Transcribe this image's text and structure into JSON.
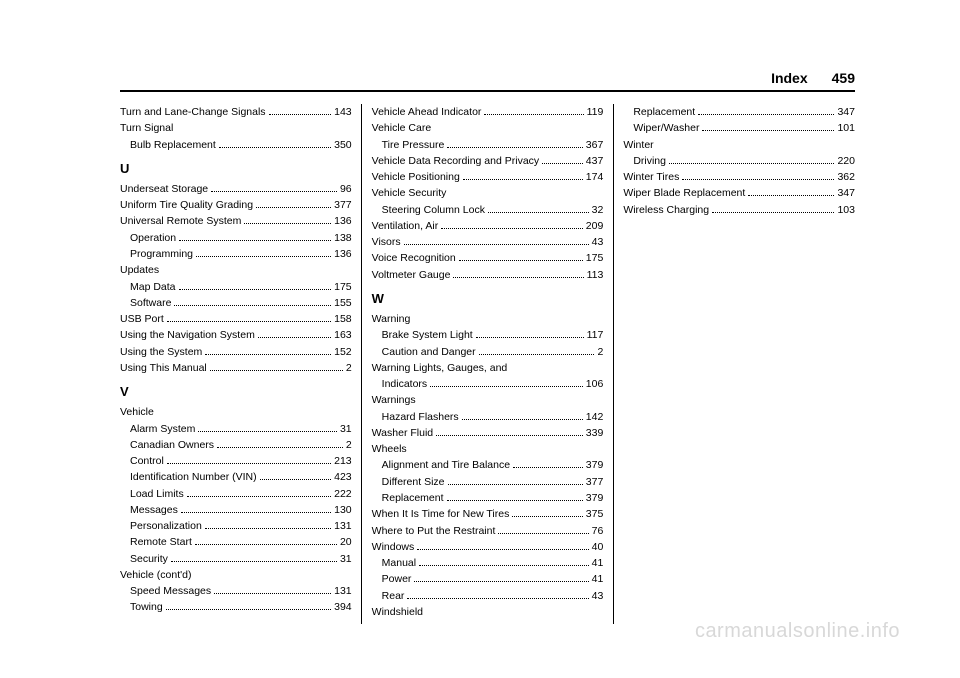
{
  "header": {
    "title": "Index",
    "page": "459"
  },
  "watermark": "carmanualsonline.info",
  "items": [
    {
      "type": "entry",
      "label": "Turn and Lane-Change Signals",
      "page": "143"
    },
    {
      "type": "heading",
      "label": "Turn Signal"
    },
    {
      "type": "sub",
      "label": "Bulb Replacement",
      "page": "350"
    },
    {
      "type": "letter",
      "label": "U"
    },
    {
      "type": "entry",
      "label": "Underseat Storage",
      "page": "96"
    },
    {
      "type": "entry",
      "label": "Uniform Tire Quality Grading",
      "page": "377"
    },
    {
      "type": "entry",
      "label": "Universal Remote System",
      "page": "136"
    },
    {
      "type": "sub",
      "label": "Operation",
      "page": "138"
    },
    {
      "type": "sub",
      "label": "Programming",
      "page": "136"
    },
    {
      "type": "heading",
      "label": "Updates"
    },
    {
      "type": "sub",
      "label": "Map Data",
      "page": "175"
    },
    {
      "type": "sub",
      "label": "Software",
      "page": "155"
    },
    {
      "type": "entry",
      "label": "USB Port",
      "page": "158"
    },
    {
      "type": "entry",
      "label": "Using the Navigation System",
      "page": "163"
    },
    {
      "type": "entry",
      "label": "Using the System",
      "page": "152"
    },
    {
      "type": "entry",
      "label": "Using This Manual",
      "page": "2"
    },
    {
      "type": "letter",
      "label": "V"
    },
    {
      "type": "heading",
      "label": "Vehicle"
    },
    {
      "type": "sub",
      "label": "Alarm System",
      "page": "31"
    },
    {
      "type": "sub",
      "label": "Canadian Owners",
      "page": "2"
    },
    {
      "type": "sub",
      "label": "Control",
      "page": "213"
    },
    {
      "type": "sub",
      "label": "Identification Number (VIN)",
      "page": "423"
    },
    {
      "type": "sub",
      "label": "Load Limits",
      "page": "222"
    },
    {
      "type": "sub",
      "label": "Messages",
      "page": "130"
    },
    {
      "type": "sub",
      "label": "Personalization",
      "page": "131"
    },
    {
      "type": "sub",
      "label": "Remote Start",
      "page": "20"
    },
    {
      "type": "sub",
      "label": "Security",
      "page": "31"
    },
    {
      "type": "heading",
      "label": "Vehicle (cont'd)"
    },
    {
      "type": "sub",
      "label": "Speed Messages",
      "page": "131"
    },
    {
      "type": "sub",
      "label": "Towing",
      "page": "394"
    },
    {
      "type": "entry",
      "label": "Vehicle Ahead Indicator",
      "page": "119"
    },
    {
      "type": "heading",
      "label": "Vehicle Care"
    },
    {
      "type": "sub",
      "label": "Tire Pressure",
      "page": "367"
    },
    {
      "type": "entry",
      "label": "Vehicle Data Recording and Privacy",
      "page": "437"
    },
    {
      "type": "entry",
      "label": "Vehicle Positioning",
      "page": "174"
    },
    {
      "type": "heading",
      "label": "Vehicle Security"
    },
    {
      "type": "sub",
      "label": "Steering Column Lock",
      "page": "32"
    },
    {
      "type": "entry",
      "label": "Ventilation, Air",
      "page": "209"
    },
    {
      "type": "entry",
      "label": "Visors",
      "page": "43"
    },
    {
      "type": "entry",
      "label": "Voice Recognition",
      "page": "175"
    },
    {
      "type": "entry",
      "label": "Voltmeter Gauge",
      "page": "113"
    },
    {
      "type": "letter",
      "label": "W"
    },
    {
      "type": "heading",
      "label": "Warning"
    },
    {
      "type": "sub",
      "label": "Brake System Light",
      "page": "117"
    },
    {
      "type": "sub",
      "label": "Caution and Danger",
      "page": "2"
    },
    {
      "type": "heading",
      "label": "Warning Lights, Gauges, and"
    },
    {
      "type": "sub",
      "label": "Indicators",
      "page": "106"
    },
    {
      "type": "heading",
      "label": "Warnings"
    },
    {
      "type": "sub",
      "label": "Hazard Flashers",
      "page": "142"
    },
    {
      "type": "entry",
      "label": "Washer Fluid",
      "page": "339"
    },
    {
      "type": "heading",
      "label": "Wheels"
    },
    {
      "type": "sub",
      "label": "Alignment and Tire Balance",
      "page": "379"
    },
    {
      "type": "sub",
      "label": "Different Size",
      "page": "377"
    },
    {
      "type": "sub",
      "label": "Replacement",
      "page": "379"
    },
    {
      "type": "entry",
      "label": "When It Is Time for New Tires",
      "page": "375"
    },
    {
      "type": "entry",
      "label": "Where to Put the Restraint",
      "page": "76"
    },
    {
      "type": "entry",
      "label": "Windows",
      "page": "40"
    },
    {
      "type": "sub",
      "label": "Manual",
      "page": "41"
    },
    {
      "type": "sub",
      "label": "Power",
      "page": "41"
    },
    {
      "type": "sub",
      "label": "Rear",
      "page": "43"
    },
    {
      "type": "heading",
      "label": "Windshield"
    },
    {
      "type": "sub",
      "label": "Replacement",
      "page": "347"
    },
    {
      "type": "sub",
      "label": "Wiper/Washer",
      "page": "101"
    },
    {
      "type": "heading",
      "label": "Winter"
    },
    {
      "type": "sub",
      "label": "Driving",
      "page": "220"
    },
    {
      "type": "entry",
      "label": "Winter Tires",
      "page": "362"
    },
    {
      "type": "entry",
      "label": "Wiper Blade Replacement",
      "page": "347"
    },
    {
      "type": "entry",
      "label": "Wireless Charging",
      "page": "103"
    }
  ]
}
